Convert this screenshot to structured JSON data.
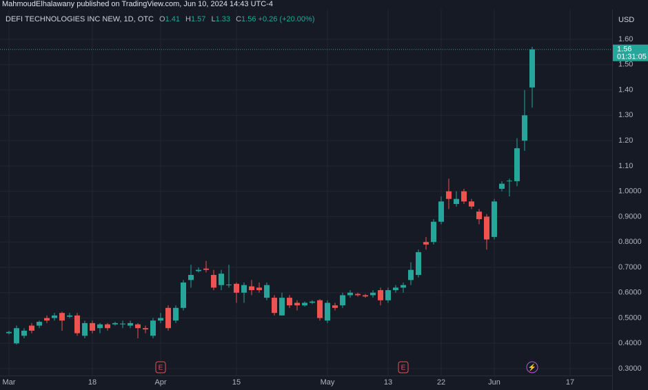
{
  "header": "MahmoudElhalawany published on TradingView.com, Jun 10, 2024 14:43 UTC-4",
  "chart_data": {
    "type": "candlestick",
    "title": "DEFI TECHNOLOGIES INC NEW, 1D, OTC",
    "currency": "USD",
    "ohlc_keys": [
      "O",
      "H",
      "L",
      "C"
    ],
    "change_label": "+0.26 (+20.00%)",
    "countdown": "01:31:05",
    "up_color": "#26a69a",
    "down_color": "#ef5350",
    "grid": true,
    "categories": [
      "Mar",
      null,
      null,
      null,
      null,
      null,
      null,
      null,
      null,
      null,
      null,
      "18",
      null,
      null,
      null,
      null,
      null,
      null,
      null,
      null,
      "Apr",
      null,
      null,
      null,
      null,
      null,
      null,
      null,
      null,
      null,
      "15",
      null,
      null,
      null,
      null,
      null,
      null,
      null,
      null,
      null,
      null,
      null,
      "May",
      null,
      null,
      null,
      null,
      null,
      null,
      null,
      "13",
      null,
      null,
      null,
      null,
      null,
      null,
      "22",
      null,
      null,
      null,
      null,
      null,
      null,
      "Jun",
      null,
      null,
      null,
      null,
      null,
      null,
      null,
      null,
      null,
      "17"
    ],
    "open": [
      0.44,
      0.4,
      0.43,
      0.47,
      0.47,
      0.5,
      0.5,
      0.52,
      0.505,
      0.51,
      0.43,
      0.48,
      0.46,
      0.475,
      0.475,
      0.475,
      0.47,
      0.475,
      0.46,
      0.43,
      0.49,
      0.54,
      0.49,
      0.54,
      0.65,
      0.685,
      0.695,
      0.67,
      0.63,
      0.63,
      0.635,
      0.6,
      0.625,
      0.62,
      0.58,
      0.58,
      0.51,
      0.58,
      0.56,
      0.55,
      0.56,
      0.57,
      0.49,
      0.55,
      0.55,
      0.59,
      0.595,
      0.59,
      0.59,
      0.61,
      0.57,
      0.61,
      0.62,
      0.65,
      0.67,
      0.8,
      0.8,
      0.88,
      1.0,
      0.95,
      1.0,
      0.96,
      0.92,
      0.9,
      0.82,
      1.01,
      1.04,
      1.04,
      1.2,
      1.41,
      null,
      null,
      null,
      null,
      null
    ],
    "high": [
      0.45,
      0.47,
      0.46,
      0.48,
      0.49,
      0.51,
      0.52,
      0.525,
      0.52,
      0.52,
      0.49,
      0.49,
      0.48,
      0.48,
      0.485,
      0.49,
      0.49,
      0.48,
      0.47,
      0.5,
      0.52,
      0.55,
      0.55,
      0.65,
      0.71,
      0.7,
      0.725,
      0.69,
      0.69,
      0.71,
      0.64,
      0.64,
      0.65,
      0.64,
      0.64,
      0.59,
      0.6,
      0.59,
      0.57,
      0.565,
      0.57,
      0.575,
      0.57,
      0.56,
      0.6,
      0.61,
      0.6,
      0.595,
      0.61,
      0.62,
      0.62,
      0.63,
      0.64,
      0.72,
      0.77,
      0.82,
      0.89,
      0.98,
      1.05,
      1.0,
      1.01,
      0.97,
      0.93,
      0.91,
      0.97,
      1.04,
      1.05,
      1.21,
      1.4,
      1.57,
      null,
      null,
      null,
      null,
      null
    ],
    "low": [
      0.435,
      0.395,
      0.42,
      0.44,
      0.46,
      0.48,
      0.49,
      0.45,
      0.5,
      0.43,
      0.42,
      0.44,
      0.44,
      0.45,
      0.47,
      0.46,
      0.46,
      0.42,
      0.44,
      0.42,
      0.48,
      0.45,
      0.48,
      0.53,
      0.62,
      0.68,
      0.68,
      0.61,
      0.61,
      0.62,
      0.56,
      0.56,
      0.59,
      0.6,
      0.57,
      0.51,
      0.51,
      0.54,
      0.53,
      0.545,
      0.555,
      0.49,
      0.48,
      0.53,
      0.54,
      0.58,
      0.585,
      0.58,
      0.58,
      0.55,
      0.56,
      0.6,
      0.6,
      0.63,
      0.66,
      0.77,
      0.79,
      0.87,
      0.93,
      0.94,
      0.95,
      0.93,
      0.87,
      0.77,
      0.81,
      1.0,
      0.98,
      1.02,
      1.16,
      1.33,
      null,
      null,
      null,
      null,
      null
    ],
    "close": [
      0.445,
      0.46,
      0.45,
      0.45,
      0.485,
      0.49,
      0.51,
      0.49,
      0.51,
      0.44,
      0.48,
      0.45,
      0.475,
      0.46,
      0.48,
      0.478,
      0.48,
      0.46,
      0.455,
      0.49,
      0.5,
      0.46,
      0.54,
      0.64,
      0.67,
      0.69,
      0.69,
      0.62,
      0.675,
      0.632,
      0.6,
      0.63,
      0.61,
      0.61,
      0.63,
      0.52,
      0.58,
      0.55,
      0.55,
      0.56,
      0.565,
      0.5,
      0.56,
      0.54,
      0.59,
      0.6,
      0.59,
      0.585,
      0.6,
      0.57,
      0.61,
      0.62,
      0.63,
      0.69,
      0.76,
      0.79,
      0.88,
      0.96,
      0.97,
      0.97,
      0.96,
      0.94,
      0.89,
      0.81,
      0.96,
      1.03,
      1.042,
      1.17,
      1.3,
      1.56,
      null,
      null,
      null,
      null,
      null
    ],
    "events": [
      {
        "at": 20,
        "label": "E"
      },
      {
        "at": 52,
        "label": "E"
      },
      {
        "at": 69,
        "label": "⚡"
      }
    ],
    "ylim": [
      0.273,
      1.717
    ],
    "yticks": [
      {
        "value": 0.3,
        "label": "0.3000"
      },
      {
        "value": 0.4,
        "label": "0.4000"
      },
      {
        "value": 0.5,
        "label": "0.5000"
      },
      {
        "value": 0.6,
        "label": "0.6000"
      },
      {
        "value": 0.7,
        "label": "0.7000"
      },
      {
        "value": 0.8,
        "label": "0.8000"
      },
      {
        "value": 0.9,
        "label": "0.9000"
      },
      {
        "value": 1.0,
        "label": "1.0000"
      },
      {
        "value": 1.1,
        "label": "1.10"
      },
      {
        "value": 1.2,
        "label": "1.20"
      },
      {
        "value": 1.3,
        "label": "1.30"
      },
      {
        "value": 1.4,
        "label": "1.40"
      },
      {
        "value": 1.5,
        "label": "1.50"
      },
      {
        "value": 1.6,
        "label": "1.60"
      }
    ]
  }
}
